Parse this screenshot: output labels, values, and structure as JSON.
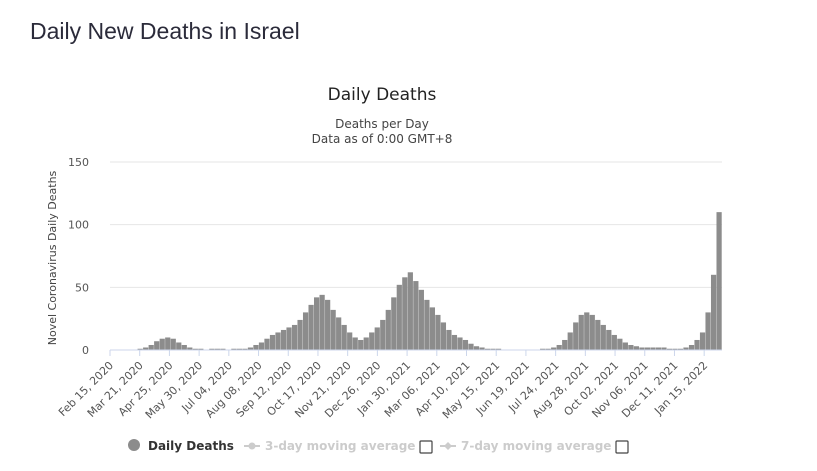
{
  "page": {
    "title": "Daily New Deaths in Israel"
  },
  "chart_data": {
    "type": "bar",
    "title": "Daily Deaths",
    "subtitle_line1": "Deaths per Day",
    "subtitle_line2": "Data as of 0:00 GMT+8",
    "ylabel": "Novel Coronavirus Daily Deaths",
    "xlabel": "",
    "ylim": [
      0,
      150
    ],
    "yticks": [
      "0",
      "50",
      "100",
      "150"
    ],
    "grid": true,
    "color": "#8c8c8c",
    "start_date": "2020-02-15",
    "end_date": "2022-02-05",
    "xtick_labels": [
      "Feb 15, 2020",
      "Mar 21, 2020",
      "Apr 25, 2020",
      "May 30, 2020",
      "Jul 04, 2020",
      "Aug 08, 2020",
      "Sep 12, 2020",
      "Oct 17, 2020",
      "Nov 21, 2020",
      "Dec 26, 2020",
      "Jan 30, 2021",
      "Mar 06, 2021",
      "Apr 10, 2021",
      "May 15, 2021",
      "Jun 19, 2021",
      "Jul 24, 2021",
      "Aug 28, 2021",
      "Oct 02, 2021",
      "Nov 06, 2021",
      "Dec 11, 2021",
      "Jan 15, 2022"
    ],
    "series": [
      {
        "name": "Daily Deaths",
        "aggregation": "weekly average of daily values",
        "values": [
          0,
          0,
          0,
          0,
          0,
          1,
          2,
          4,
          7,
          9,
          10,
          9,
          6,
          4,
          2,
          1,
          1,
          0,
          1,
          1,
          1,
          0,
          1,
          1,
          1,
          2,
          4,
          6,
          9,
          12,
          14,
          16,
          18,
          20,
          24,
          30,
          36,
          42,
          44,
          40,
          32,
          26,
          20,
          14,
          10,
          8,
          10,
          14,
          18,
          24,
          32,
          42,
          52,
          58,
          62,
          55,
          48,
          40,
          34,
          28,
          22,
          16,
          12,
          10,
          8,
          5,
          3,
          2,
          1,
          1,
          1,
          0,
          0,
          0,
          0,
          0,
          0,
          0,
          1,
          1,
          2,
          4,
          8,
          14,
          22,
          28,
          30,
          28,
          24,
          20,
          16,
          12,
          9,
          6,
          4,
          3,
          2,
          2,
          2,
          2,
          2,
          1,
          1,
          1,
          2,
          4,
          8,
          14,
          30,
          60,
          110
        ]
      },
      {
        "name": "3-day moving average",
        "values": []
      },
      {
        "name": "7-day moving average",
        "values": []
      }
    ],
    "legend": {
      "placement": "bottom",
      "items": [
        "Daily Deaths",
        "3-day moving average",
        "7-day moving average"
      ]
    }
  }
}
